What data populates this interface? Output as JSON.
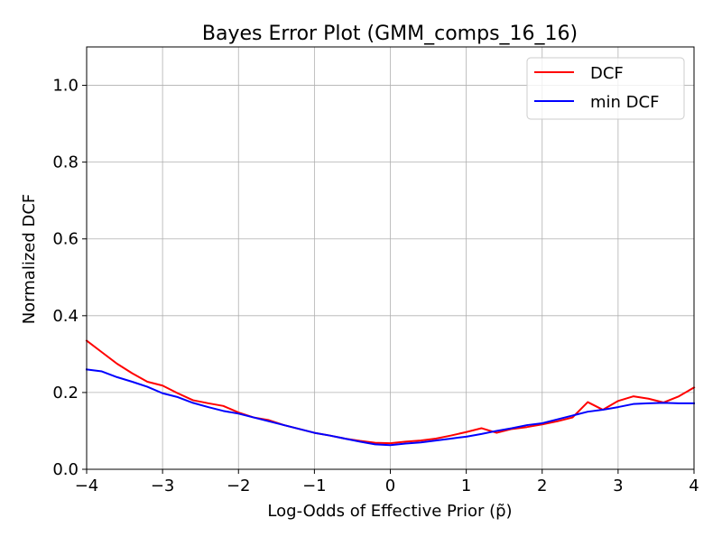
{
  "chart_data": {
    "type": "line",
    "title": "Bayes Error Plot (GMM_comps_16_16)",
    "xlabel": "Log-Odds of Effective Prior (p̃)",
    "ylabel": "Normalized DCF",
    "xlim": [
      -4,
      4
    ],
    "ylim": [
      0,
      1.1
    ],
    "x_ticks": [
      -4,
      -3,
      -2,
      -1,
      0,
      1,
      2,
      3,
      4
    ],
    "x_tick_labels": [
      "−4",
      "−3",
      "−2",
      "−1",
      "0",
      "1",
      "2",
      "3",
      "4"
    ],
    "y_ticks": [
      0,
      0.2,
      0.4,
      0.6,
      0.8,
      1.0
    ],
    "y_tick_labels": [
      "0.0",
      "0.2",
      "0.4",
      "0.6",
      "0.8",
      "1.0"
    ],
    "grid": true,
    "legend_position": "top-right",
    "series": [
      {
        "name": "DCF",
        "color": "#ff0000",
        "x": [
          -4.0,
          -3.8,
          -3.6,
          -3.4,
          -3.2,
          -3.0,
          -2.8,
          -2.6,
          -2.4,
          -2.2,
          -2.0,
          -1.8,
          -1.6,
          -1.4,
          -1.2,
          -1.0,
          -0.8,
          -0.6,
          -0.4,
          -0.2,
          0.0,
          0.2,
          0.4,
          0.6,
          0.8,
          1.0,
          1.2,
          1.4,
          1.6,
          1.8,
          2.0,
          2.2,
          2.4,
          2.6,
          2.8,
          3.0,
          3.2,
          3.4,
          3.6,
          3.8,
          4.0
        ],
        "y": [
          0.335,
          0.305,
          0.275,
          0.25,
          0.228,
          0.218,
          0.198,
          0.18,
          0.172,
          0.165,
          0.148,
          0.135,
          0.128,
          0.115,
          0.105,
          0.095,
          0.088,
          0.08,
          0.074,
          0.069,
          0.068,
          0.072,
          0.075,
          0.08,
          0.088,
          0.097,
          0.107,
          0.095,
          0.105,
          0.11,
          0.117,
          0.125,
          0.135,
          0.175,
          0.155,
          0.178,
          0.19,
          0.184,
          0.174,
          0.19,
          0.213
        ]
      },
      {
        "name": "min DCF",
        "color": "#0000ff",
        "x": [
          -4.0,
          -3.8,
          -3.6,
          -3.4,
          -3.2,
          -3.0,
          -2.8,
          -2.6,
          -2.4,
          -2.2,
          -2.0,
          -1.8,
          -1.6,
          -1.4,
          -1.2,
          -1.0,
          -0.8,
          -0.6,
          -0.4,
          -0.2,
          0.0,
          0.2,
          0.4,
          0.6,
          0.8,
          1.0,
          1.2,
          1.4,
          1.6,
          1.8,
          2.0,
          2.2,
          2.4,
          2.6,
          2.8,
          3.0,
          3.2,
          3.4,
          3.6,
          3.8,
          4.0
        ],
        "y": [
          0.26,
          0.255,
          0.24,
          0.228,
          0.215,
          0.198,
          0.188,
          0.173,
          0.162,
          0.152,
          0.145,
          0.135,
          0.125,
          0.115,
          0.105,
          0.095,
          0.088,
          0.08,
          0.072,
          0.065,
          0.063,
          0.067,
          0.07,
          0.075,
          0.08,
          0.085,
          0.092,
          0.1,
          0.107,
          0.115,
          0.12,
          0.13,
          0.14,
          0.15,
          0.155,
          0.162,
          0.17,
          0.172,
          0.173,
          0.172,
          0.172
        ]
      }
    ]
  }
}
